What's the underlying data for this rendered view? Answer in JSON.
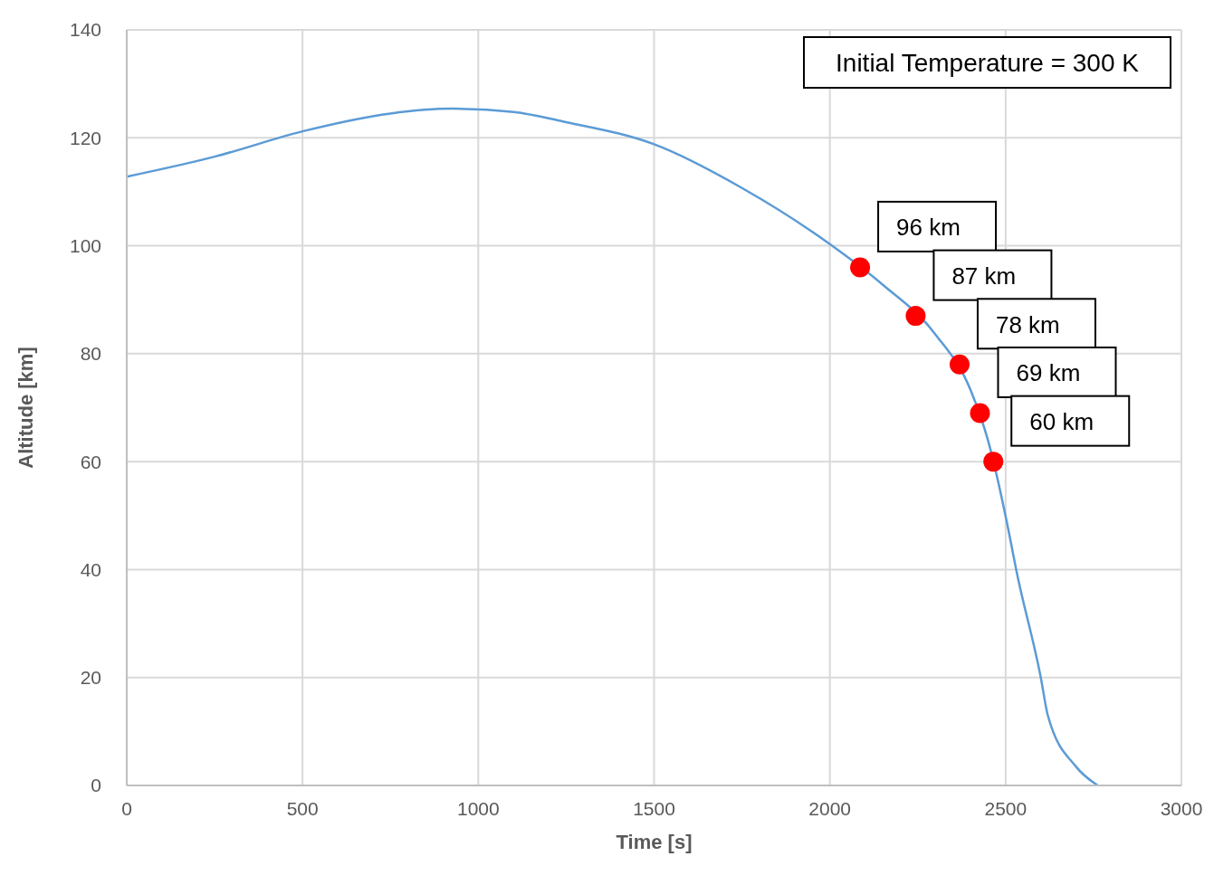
{
  "chart_data": {
    "type": "line",
    "xlabel": "Time [s]",
    "ylabel": "Altitude [km]",
    "xlim": [
      0,
      3000
    ],
    "xticks": [
      0,
      500,
      1000,
      1500,
      2000,
      2500,
      3000
    ],
    "ylim": [
      0,
      140
    ],
    "yticks": [
      0,
      20,
      40,
      60,
      80,
      100,
      120,
      140
    ],
    "grid": true,
    "series": [
      {
        "color": "#5b9bd5",
        "marker": "none",
        "x": [
          0,
          250,
          500,
          750,
          925,
          1100,
          1250,
          1500,
          1750,
          2000,
          2150,
          2300,
          2400,
          2450,
          2509,
          2530,
          2600,
          2620,
          2700,
          2762
        ],
        "values": [
          112.8,
          116.5,
          121.2,
          124.5,
          125.4,
          124.8,
          122.9,
          118.8,
          110.7,
          100.3,
          92.8,
          83.6,
          73.3,
          63.9,
          47,
          40,
          20,
          13,
          3.5,
          0
        ]
      },
      {
        "type": "scatter",
        "color": "#ff0000",
        "marker": "circle",
        "x": [
          2086,
          2244,
          2369,
          2427,
          2465
        ],
        "values": [
          96,
          87,
          78,
          69,
          60
        ]
      }
    ],
    "annotations": [
      "Initial Temperature = 300 K",
      {
        "text": "96 km",
        "x": 2086,
        "y": 96
      },
      {
        "text": "87 km",
        "x": 2244,
        "y": 87
      },
      {
        "text": "78 km",
        "x": 2369,
        "y": 78
      },
      {
        "text": "69 km",
        "x": 2427,
        "y": 69
      },
      {
        "text": "60 km",
        "x": 2465,
        "y": 60
      }
    ]
  }
}
